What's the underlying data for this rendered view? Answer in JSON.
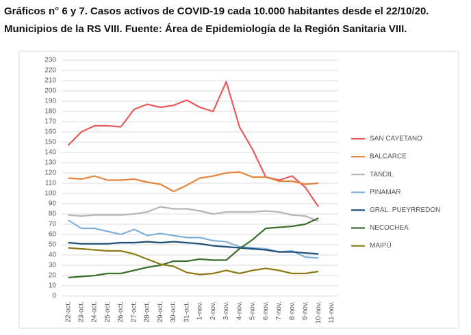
{
  "chart_data": {
    "type": "line",
    "title": "Gráficos n° 6 y 7. Casos activos de COVID-19 cada 10.000 habitantes desde el 22/10/20.",
    "subtitle": "Municipios de la RS VIII. Fuente: Área de Epidemiología de la Región Sanitaria VIII.",
    "categories": [
      "22-oct.",
      "23-oct.",
      "24-oct.",
      "25-oct.",
      "26-oct.",
      "27-oct.",
      "28-oct.",
      "29-oct.",
      "30-oct.",
      "31-oct.",
      "1-nov.",
      "2-nov.",
      "3-nov.",
      "4-nov.",
      "5-nov.",
      "6-nov.",
      "7-nov.",
      "8-nov.",
      "9-nov.",
      "10-nov.",
      "11-nov."
    ],
    "series": [
      {
        "name": "SAN CAYETANO",
        "color": "#e8585a",
        "values": [
          147,
          160,
          166,
          166,
          165,
          182,
          187,
          184,
          186,
          191,
          184,
          180,
          209,
          165,
          143,
          116,
          113,
          117,
          106,
          87,
          null
        ]
      },
      {
        "name": "BALCARCE",
        "color": "#e8843a",
        "values": [
          115,
          114,
          117,
          113,
          113,
          114,
          111,
          109,
          102,
          108,
          115,
          117,
          120,
          121,
          116,
          116,
          112,
          112,
          109,
          110,
          null
        ]
      },
      {
        "name": "TANDIL",
        "color": "#b4b4b4",
        "values": [
          79,
          78,
          79,
          79,
          79,
          80,
          82,
          87,
          85,
          85,
          83,
          80,
          82,
          82,
          82,
          83,
          82,
          79,
          78,
          73,
          null
        ]
      },
      {
        "name": "PINAMAR",
        "color": "#7fb0d9",
        "values": [
          74,
          66,
          66,
          63,
          60,
          65,
          59,
          61,
          59,
          57,
          57,
          54,
          53,
          48,
          47,
          46,
          43,
          44,
          38,
          37,
          null
        ]
      },
      {
        "name": "GRAL. PUEYRREDON",
        "color": "#1f4e79",
        "values": [
          52,
          51,
          51,
          51,
          52,
          52,
          53,
          52,
          53,
          52,
          51,
          49,
          48,
          47,
          46,
          45,
          43,
          43,
          42,
          41,
          null
        ]
      },
      {
        "name": "NECOCHEA",
        "color": "#3b6e2a",
        "values": [
          18,
          19,
          20,
          22,
          22,
          25,
          28,
          30,
          34,
          34,
          36,
          35,
          35,
          46,
          55,
          66,
          67,
          68,
          70,
          76,
          null
        ]
      },
      {
        "name": "MAIPÚ",
        "color": "#8a7a12",
        "values": [
          47,
          46,
          45,
          44,
          44,
          41,
          36,
          31,
          29,
          23,
          21,
          22,
          25,
          22,
          25,
          27,
          25,
          22,
          22,
          24,
          null
        ]
      }
    ],
    "ylim": [
      0,
      230
    ],
    "yticks": [
      0,
      10,
      20,
      30,
      40,
      50,
      60,
      70,
      80,
      90,
      100,
      110,
      120,
      130,
      140,
      150,
      160,
      170,
      180,
      190,
      200,
      210,
      220,
      230
    ],
    "grid": true,
    "legend": "right"
  }
}
